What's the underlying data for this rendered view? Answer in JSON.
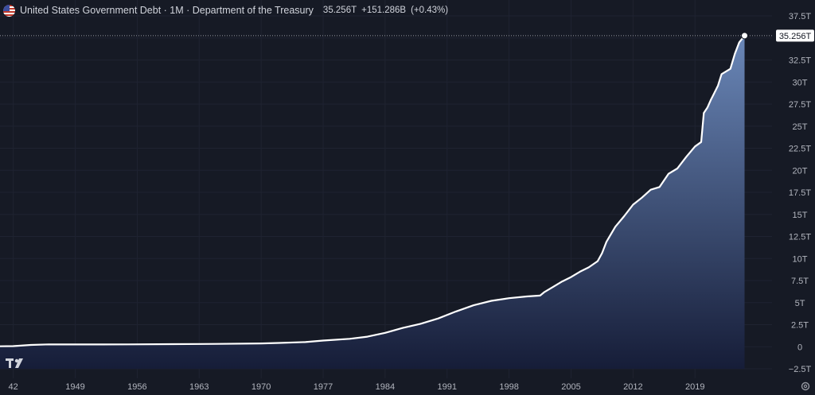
{
  "header": {
    "title": "United States Government Debt · 1M · Department of the Treasury",
    "value": "35.256T",
    "change": "+151.286B",
    "change_pct": "(+0.43%)"
  },
  "chart_data": {
    "type": "area",
    "xlim": [
      1940.5,
      2027.7
    ],
    "ylim": [
      -2.5,
      37.5
    ],
    "x_ticks": [
      "42",
      "1949",
      "1956",
      "1963",
      "1970",
      "1977",
      "1984",
      "1991",
      "1998",
      "2005",
      "2012",
      "2019"
    ],
    "x_tick_values": [
      1942,
      1949,
      1956,
      1963,
      1970,
      1977,
      1984,
      1991,
      1998,
      2005,
      2012,
      2019
    ],
    "y_ticks": [
      "37.5T",
      "35T",
      "32.5T",
      "30T",
      "27.5T",
      "25T",
      "22.5T",
      "20T",
      "17.5T",
      "15T",
      "12.5T",
      "10T",
      "7.5T",
      "5T",
      "2.5T",
      "0",
      "−2.5T"
    ],
    "y_tick_values": [
      37.5,
      35,
      32.5,
      30,
      27.5,
      25,
      22.5,
      20,
      17.5,
      15,
      12.5,
      10,
      7.5,
      5,
      2.5,
      0,
      -2.5
    ],
    "last_value_label": "35.256T",
    "last_value": 35.256,
    "series": [
      {
        "x": [
          1940.5,
          1942,
          1944,
          1946,
          1950,
          1955,
          1960,
          1965,
          1970,
          1972,
          1975,
          1977,
          1980,
          1982,
          1984,
          1986,
          1988,
          1990,
          1992,
          1994,
          1996,
          1998,
          2000,
          2001.5,
          2002,
          2003,
          2004,
          2005,
          2006,
          2007,
          2008,
          2008.5,
          2009,
          2010,
          2011,
          2012,
          2013,
          2014,
          2015,
          2016,
          2017,
          2018,
          2019,
          2019.7,
          2020,
          2020.4,
          2020.8,
          2021,
          2021.6,
          2022,
          2023,
          2023.5,
          2024,
          2024.6
        ],
        "y": [
          0.05,
          0.07,
          0.2,
          0.27,
          0.26,
          0.27,
          0.29,
          0.32,
          0.37,
          0.43,
          0.53,
          0.7,
          0.9,
          1.14,
          1.57,
          2.13,
          2.6,
          3.2,
          4.0,
          4.7,
          5.2,
          5.5,
          5.7,
          5.8,
          6.2,
          6.8,
          7.4,
          7.9,
          8.5,
          9.0,
          9.7,
          10.6,
          11.9,
          13.6,
          14.8,
          16.1,
          16.9,
          17.8,
          18.1,
          19.6,
          20.2,
          21.5,
          22.7,
          23.2,
          26.5,
          27.1,
          28.0,
          28.4,
          29.6,
          30.9,
          31.5,
          33.2,
          34.5,
          35.256
        ]
      }
    ],
    "colors": {
      "background": "#161a25",
      "grid": "#1f2331",
      "line": "#ffffff",
      "area_top": "#6a87b8",
      "area_bottom": "#161d38",
      "axis_text": "#b2b5be",
      "label_bg": "#ffffff",
      "label_text": "#131722"
    },
    "grid": true
  }
}
